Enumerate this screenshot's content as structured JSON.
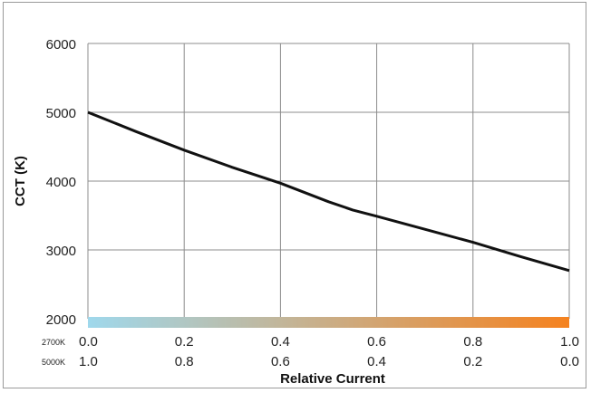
{
  "chart_data": {
    "type": "line",
    "title": "",
    "xlabel": "Relative Current",
    "ylabel": "CCT (K)",
    "xlim": [
      0,
      1
    ],
    "ylim": [
      2000,
      6000
    ],
    "grid": true,
    "legend": "none",
    "y_ticks": [
      "6000",
      "5000",
      "4000",
      "3000",
      "2000"
    ],
    "x_tick_rows": [
      {
        "label": "2700K",
        "ticks": [
          "0.0",
          "0.2",
          "0.4",
          "0.6",
          "0.8",
          "1.0"
        ]
      },
      {
        "label": "5000K",
        "ticks": [
          "1.0",
          "0.8",
          "0.6",
          "0.4",
          "0.2",
          "0.0"
        ]
      }
    ],
    "series": [
      {
        "x": [
          0.0,
          0.1,
          0.2,
          0.3,
          0.4,
          0.5,
          0.55,
          0.6,
          0.7,
          0.8,
          0.9,
          1.0
        ],
        "y": [
          5000,
          4720,
          4450,
          4200,
          3970,
          3700,
          3580,
          3490,
          3300,
          3110,
          2900,
          2700
        ],
        "color": "#111111"
      }
    ],
    "color_bar": {
      "start_color": "#9fd8ec",
      "end_color": "#f5821f"
    }
  }
}
